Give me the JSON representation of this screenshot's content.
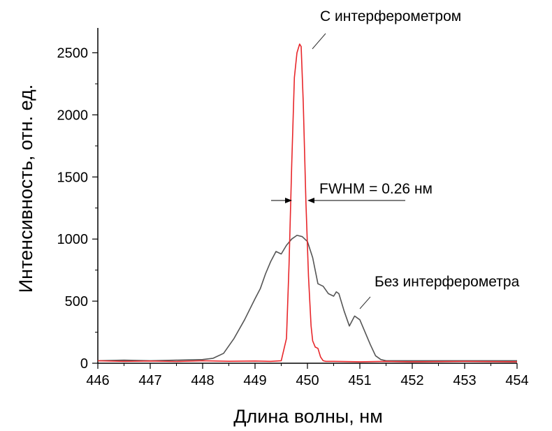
{
  "chart_data": {
    "type": "line",
    "xlabel": "Длина волны, нм",
    "ylabel": "Интенсивность, отн. ед.",
    "xlim": [
      446,
      454
    ],
    "ylim": [
      0,
      2700
    ],
    "x_ticks": [
      446,
      447,
      448,
      449,
      450,
      451,
      452,
      453,
      454
    ],
    "y_ticks": [
      0,
      500,
      1000,
      1500,
      2000,
      2500
    ],
    "grid": false,
    "series": [
      {
        "name": "С интерферометром",
        "color": "#e8262a",
        "x": [
          446.0,
          446.5,
          447.0,
          447.5,
          448.0,
          448.5,
          449.0,
          449.3,
          449.5,
          449.6,
          449.65,
          449.7,
          449.75,
          449.8,
          449.85,
          449.88,
          449.92,
          449.97,
          450.02,
          450.07,
          450.1,
          450.15,
          450.2,
          450.25,
          450.3,
          450.35,
          450.5,
          451.0,
          451.5,
          452.0,
          453.0,
          454.0
        ],
        "y": [
          20,
          15,
          18,
          14,
          20,
          16,
          18,
          15,
          20,
          200,
          800,
          1600,
          2300,
          2500,
          2570,
          2550,
          2100,
          1300,
          700,
          300,
          180,
          130,
          120,
          50,
          20,
          15,
          15,
          12,
          15,
          12,
          15,
          12
        ]
      },
      {
        "name": "Без интерферометра",
        "color": "#555555",
        "x": [
          446.0,
          446.5,
          447.0,
          447.5,
          448.0,
          448.2,
          448.4,
          448.6,
          448.8,
          449.0,
          449.1,
          449.2,
          449.3,
          449.4,
          449.5,
          449.6,
          449.7,
          449.8,
          449.9,
          450.0,
          450.1,
          450.2,
          450.3,
          450.4,
          450.5,
          450.55,
          450.6,
          450.7,
          450.8,
          450.9,
          451.0,
          451.1,
          451.2,
          451.3,
          451.4,
          451.5,
          452.0,
          453.0,
          454.0
        ],
        "y": [
          20,
          25,
          20,
          25,
          30,
          40,
          80,
          200,
          350,
          520,
          600,
          720,
          820,
          900,
          880,
          950,
          1000,
          1030,
          1020,
          980,
          850,
          640,
          620,
          560,
          540,
          575,
          560,
          420,
          300,
          380,
          350,
          250,
          150,
          60,
          30,
          20,
          20,
          20,
          20
        ]
      }
    ],
    "annotations": {
      "red_label": "С интерферометром",
      "gray_label": "Без интерферометра",
      "fwhm": "FWHM = 0.26 нм"
    }
  }
}
